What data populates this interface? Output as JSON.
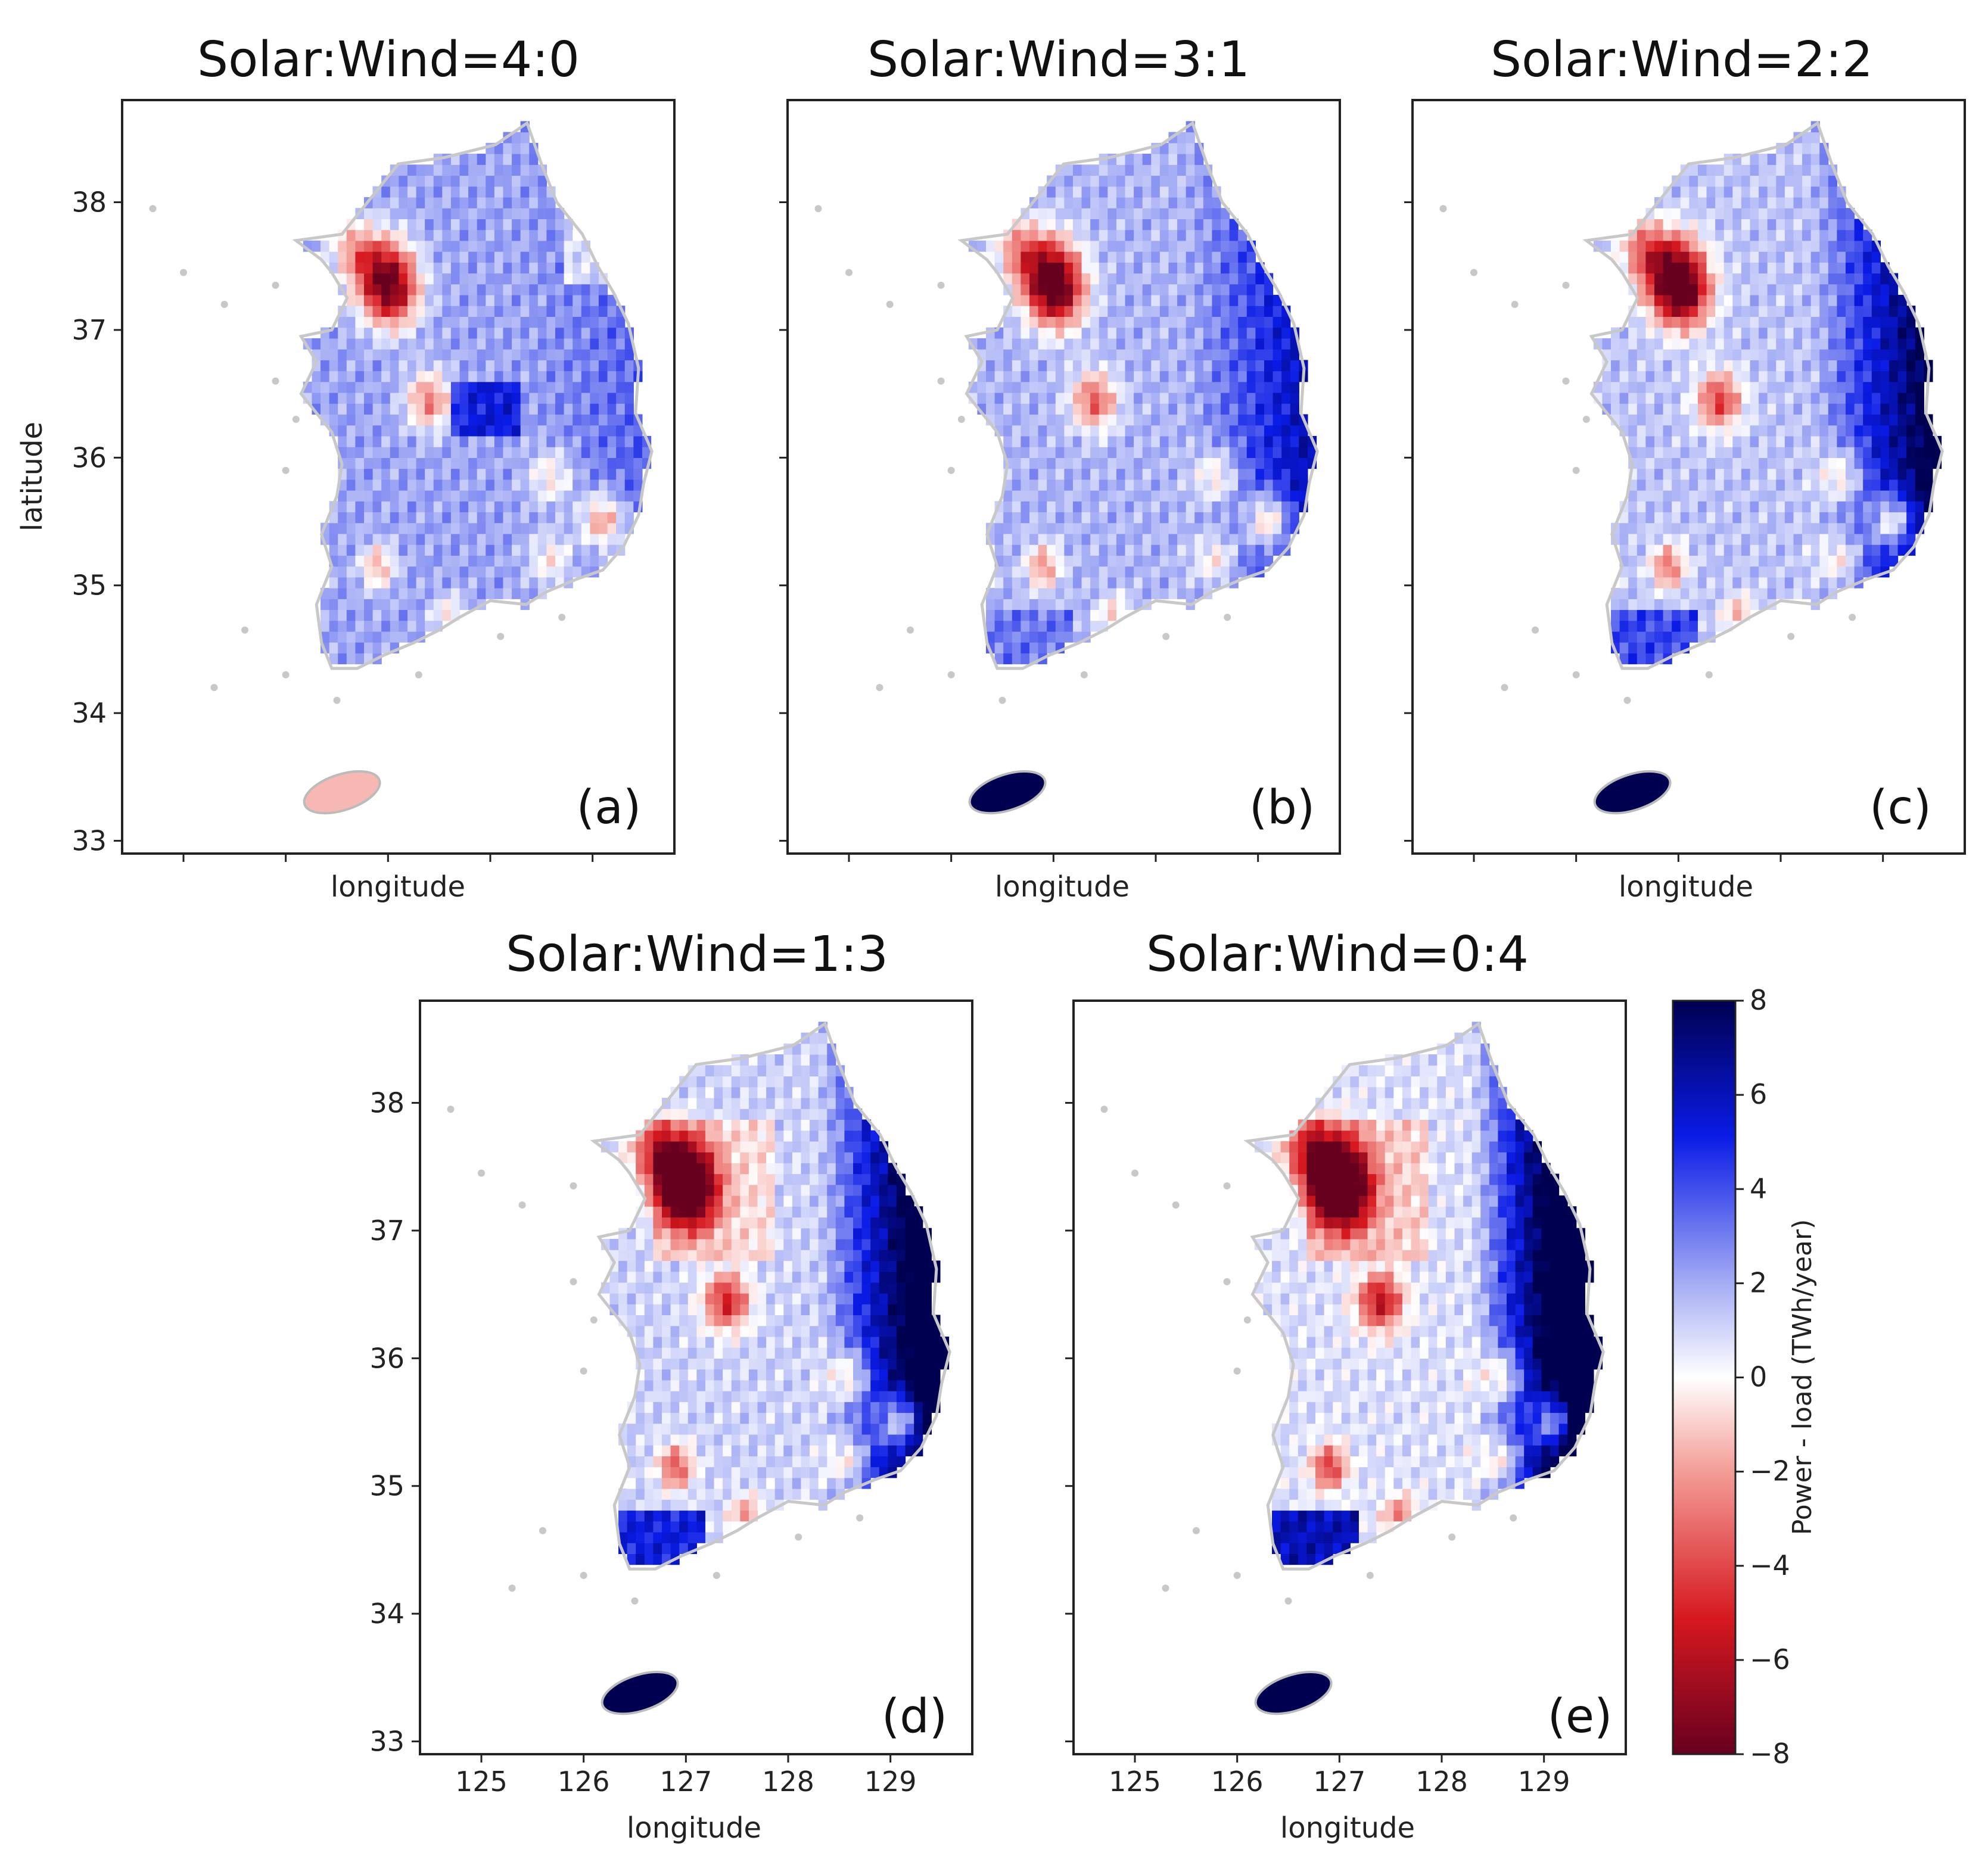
{
  "chart_data": {
    "type": "choropleth",
    "region": "South Korea (municipal districts)",
    "panels": [
      {
        "id": "a",
        "title": "Solar:Wind=4:0",
        "letter": "(a)",
        "xlabel": "longitude",
        "ylabel": "latitude",
        "show_x_ticks": false,
        "show_y_ticks": true,
        "jeju_value": -1.5
      },
      {
        "id": "b",
        "title": "Solar:Wind=3:1",
        "letter": "(b)",
        "xlabel": "longitude",
        "ylabel": "",
        "show_x_ticks": false,
        "show_y_ticks": false,
        "jeju_value": 8
      },
      {
        "id": "c",
        "title": "Solar:Wind=2:2",
        "letter": "(c)",
        "xlabel": "longitude",
        "ylabel": "",
        "show_x_ticks": false,
        "show_y_ticks": false,
        "jeju_value": 8
      },
      {
        "id": "d",
        "title": "Solar:Wind=1:3",
        "letter": "(d)",
        "xlabel": "longitude",
        "ylabel": "",
        "show_x_ticks": true,
        "show_y_ticks": true,
        "jeju_value": 8
      },
      {
        "id": "e",
        "title": "Solar:Wind=0:4",
        "letter": "(e)",
        "xlabel": "longitude",
        "ylabel": "",
        "show_x_ticks": true,
        "show_y_ticks": false,
        "jeju_value": 8
      }
    ],
    "x_ticks": [
      "125",
      "126",
      "127",
      "128",
      "129"
    ],
    "y_ticks": [
      "38",
      "37",
      "36",
      "35",
      "34",
      "33"
    ],
    "xlim": [
      124.4,
      129.8
    ],
    "ylim": [
      32.9,
      38.8
    ],
    "colorbar": {
      "label": "Power - load (TWh/year)",
      "min": -8,
      "max": 8,
      "ticks": [
        "8",
        "6",
        "4",
        "2",
        "0",
        "−2",
        "−4",
        "−6",
        "−8"
      ],
      "colormap": [
        "#67001f",
        "#d6181f",
        "#f4a09a",
        "#ffffff",
        "#a8b0f5",
        "#0a1be6",
        "#000050"
      ]
    }
  }
}
